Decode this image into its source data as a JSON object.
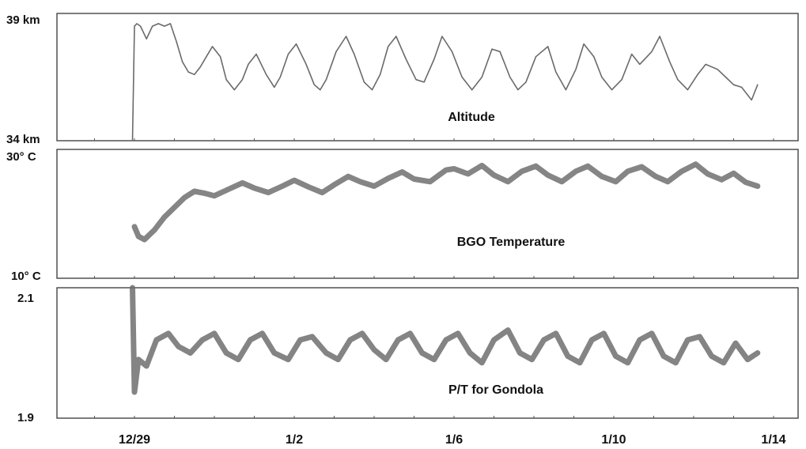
{
  "chart_data": [
    {
      "type": "line",
      "title": "Altitude",
      "ylabel": "",
      "y_axis_labels": {
        "top": "39 km",
        "bottom": "34 km"
      },
      "ylim": [
        34,
        39
      ],
      "xlim": [
        0,
        16
      ],
      "x_tick_labels": [
        "12/29",
        "1/2",
        "1/6",
        "1/10",
        "1/14"
      ],
      "x_tick_values": [
        0,
        4,
        8,
        12,
        16
      ],
      "series_color": "#6a6a6a",
      "x": [
        -0.05,
        0,
        0.06,
        0.15,
        0.3,
        0.45,
        0.6,
        0.75,
        0.9,
        1.05,
        1.2,
        1.35,
        1.5,
        1.65,
        1.8,
        1.95,
        2.15,
        2.3,
        2.5,
        2.7,
        2.85,
        3.05,
        3.3,
        3.5,
        3.65,
        3.85,
        4.05,
        4.3,
        4.5,
        4.65,
        4.8,
        5.05,
        5.3,
        5.5,
        5.75,
        5.95,
        6.15,
        6.35,
        6.55,
        6.8,
        7.05,
        7.25,
        7.5,
        7.7,
        7.95,
        8.2,
        8.45,
        8.7,
        8.95,
        9.15,
        9.4,
        9.6,
        9.8,
        10.05,
        10.35,
        10.55,
        10.8,
        11.05,
        11.25,
        11.5,
        11.7,
        11.95,
        12.2,
        12.45,
        12.65,
        12.95,
        13.15,
        13.4,
        13.6,
        13.85,
        14.1,
        14.3,
        14.6,
        14.8,
        15.0,
        15.2,
        15.45,
        15.6
      ],
      "y": [
        34,
        38.5,
        38.6,
        38.5,
        38.0,
        38.5,
        38.6,
        38.5,
        38.6,
        37.9,
        37.1,
        36.7,
        36.6,
        36.9,
        37.3,
        37.7,
        37.3,
        36.4,
        36.0,
        36.4,
        37.0,
        37.4,
        36.6,
        36.1,
        36.5,
        37.4,
        37.8,
        37.0,
        36.2,
        36.0,
        36.4,
        37.5,
        38.1,
        37.4,
        36.3,
        36.0,
        36.6,
        37.7,
        38.1,
        37.2,
        36.4,
        36.3,
        37.2,
        38.1,
        37.5,
        36.5,
        36.0,
        36.5,
        37.6,
        37.5,
        36.5,
        36.0,
        36.3,
        37.3,
        37.7,
        36.7,
        36.0,
        36.8,
        37.8,
        37.3,
        36.5,
        36.0,
        36.4,
        37.4,
        37.0,
        37.5,
        38.1,
        37.1,
        36.4,
        36.0,
        36.6,
        37.0,
        36.8,
        36.5,
        36.2,
        36.1,
        35.6,
        36.2
      ]
    },
    {
      "type": "line",
      "title": "BGO Temperature",
      "ylabel": "",
      "y_axis_labels": {
        "top": "30° C",
        "bottom": "10° C"
      },
      "ylim": [
        10,
        30
      ],
      "xlim": [
        0,
        16
      ],
      "x_tick_labels": [
        "12/29",
        "1/2",
        "1/6",
        "1/10",
        "1/14"
      ],
      "x_tick_values": [
        0,
        4,
        8,
        12,
        16
      ],
      "series_color": "#707070",
      "x": [
        0,
        0.1,
        0.25,
        0.5,
        0.75,
        1.0,
        1.25,
        1.5,
        1.75,
        2.0,
        2.35,
        2.7,
        3.0,
        3.35,
        3.7,
        4.0,
        4.35,
        4.7,
        5.0,
        5.35,
        5.65,
        6.0,
        6.35,
        6.7,
        7.0,
        7.4,
        7.8,
        8.0,
        8.35,
        8.7,
        9.0,
        9.35,
        9.7,
        10.05,
        10.35,
        10.7,
        11.05,
        11.35,
        11.7,
        12.05,
        12.35,
        12.7,
        13.05,
        13.35,
        13.7,
        14.05,
        14.35,
        14.7,
        15.0,
        15.3,
        15.6
      ],
      "y": [
        18.0,
        16.5,
        16.0,
        17.5,
        19.5,
        21.0,
        22.5,
        23.5,
        23.2,
        22.8,
        23.8,
        24.8,
        24.0,
        23.3,
        24.3,
        25.2,
        24.2,
        23.3,
        24.5,
        25.8,
        25.0,
        24.3,
        25.5,
        26.5,
        25.4,
        25.0,
        26.8,
        27.0,
        26.2,
        27.5,
        26.0,
        25.0,
        26.6,
        27.4,
        26.0,
        25.0,
        26.6,
        27.4,
        25.8,
        25.0,
        26.6,
        27.3,
        25.8,
        25.0,
        26.6,
        27.7,
        26.2,
        25.3,
        26.3,
        24.9,
        24.3
      ]
    },
    {
      "type": "line",
      "title": "P/T for Gondola",
      "ylabel": "",
      "y_axis_labels": {
        "top": "2.1",
        "bottom": "1.9"
      },
      "ylim": [
        1.9,
        2.1
      ],
      "xlim": [
        0,
        16
      ],
      "x_tick_labels": [
        "12/29",
        "1/2",
        "1/6",
        "1/10",
        "1/14"
      ],
      "x_tick_values": [
        0,
        4,
        8,
        12,
        16
      ],
      "series_color": "#6e6e6e",
      "x": [
        -0.05,
        0,
        0.1,
        0.3,
        0.55,
        0.85,
        1.1,
        1.4,
        1.7,
        2.0,
        2.3,
        2.6,
        2.9,
        3.2,
        3.5,
        3.85,
        4.15,
        4.45,
        4.8,
        5.1,
        5.4,
        5.7,
        6.0,
        6.3,
        6.6,
        6.9,
        7.2,
        7.5,
        7.8,
        8.1,
        8.4,
        8.7,
        9.0,
        9.35,
        9.65,
        9.95,
        10.25,
        10.55,
        10.85,
        11.15,
        11.45,
        11.75,
        12.05,
        12.35,
        12.65,
        12.95,
        13.25,
        13.55,
        13.85,
        14.15,
        14.45,
        14.75,
        15.05,
        15.35,
        15.6
      ],
      "y": [
        2.1,
        1.94,
        1.99,
        1.98,
        2.02,
        2.03,
        2.01,
        2.0,
        2.02,
        2.03,
        2.0,
        1.99,
        2.02,
        2.03,
        2.0,
        1.99,
        2.02,
        2.025,
        2.0,
        1.99,
        2.02,
        2.03,
        2.005,
        1.99,
        2.02,
        2.03,
        2.0,
        1.99,
        2.02,
        2.03,
        2.0,
        1.985,
        2.02,
        2.035,
        2.0,
        1.99,
        2.02,
        2.03,
        1.995,
        1.985,
        2.02,
        2.03,
        1.995,
        1.985,
        2.02,
        2.03,
        1.995,
        1.985,
        2.02,
        2.025,
        1.995,
        1.985,
        2.015,
        1.99,
        2.0
      ]
    }
  ]
}
